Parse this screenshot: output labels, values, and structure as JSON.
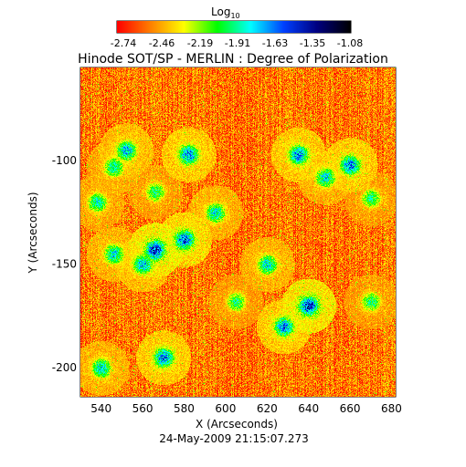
{
  "colorbar": {
    "label": "Log",
    "label_sub": "10",
    "tick_labels": [
      "-2.74",
      "-2.46",
      "-2.19",
      "-1.91",
      "-1.63",
      "-1.35",
      "-1.08"
    ],
    "range": [
      -2.74,
      -1.08
    ]
  },
  "title": "Hinode SOT/SP - MERLIN : Degree of Polarization",
  "footer": "24-May-2009 21:15:07.273",
  "chart_data": {
    "type": "heatmap",
    "title": "Hinode SOT/SP - MERLIN : Degree of Polarization",
    "xlabel": "X (Arcseconds)",
    "ylabel": "Y (Arcseconds)",
    "xlim": [
      530,
      682
    ],
    "ylim": [
      -214,
      -55
    ],
    "x_ticks": [
      540,
      560,
      580,
      600,
      620,
      640,
      660,
      680
    ],
    "y_ticks": [
      -100,
      -150,
      -200
    ],
    "colorbar_label": "Log10",
    "colorbar_range": [
      -2.74,
      -1.08
    ],
    "colorbar_ticks": [
      -2.74,
      -2.46,
      -2.19,
      -1.91,
      -1.63,
      -1.35,
      -1.08
    ],
    "colormap": [
      "#ff0000",
      "#ff8000",
      "#ffff00",
      "#00ff00",
      "#00ffff",
      "#0040ff",
      "#000080",
      "#000000"
    ],
    "date": "24-May-2009 21:15:07.273",
    "high_polarization_regions": [
      {
        "x": 552,
        "y": -95,
        "level": -1.5
      },
      {
        "x": 546,
        "y": -103,
        "level": -1.7
      },
      {
        "x": 582,
        "y": -97,
        "level": -1.4
      },
      {
        "x": 566,
        "y": -143,
        "level": -1.2
      },
      {
        "x": 580,
        "y": -138,
        "level": -1.3
      },
      {
        "x": 560,
        "y": -150,
        "level": -1.5
      },
      {
        "x": 595,
        "y": -125,
        "level": -1.6
      },
      {
        "x": 538,
        "y": -120,
        "level": -1.7
      },
      {
        "x": 546,
        "y": -145,
        "level": -1.6
      },
      {
        "x": 566,
        "y": -115,
        "level": -1.8
      },
      {
        "x": 620,
        "y": -150,
        "level": -1.6
      },
      {
        "x": 640,
        "y": -170,
        "level": -1.2
      },
      {
        "x": 628,
        "y": -180,
        "level": -1.4
      },
      {
        "x": 635,
        "y": -97,
        "level": -1.4
      },
      {
        "x": 648,
        "y": -108,
        "level": -1.6
      },
      {
        "x": 660,
        "y": -102,
        "level": -1.4
      },
      {
        "x": 670,
        "y": -118,
        "level": -1.8
      },
      {
        "x": 570,
        "y": -195,
        "level": -1.4
      },
      {
        "x": 540,
        "y": -200,
        "level": -1.6
      },
      {
        "x": 605,
        "y": -168,
        "level": -1.8
      },
      {
        "x": 670,
        "y": -168,
        "level": -1.8
      }
    ]
  }
}
